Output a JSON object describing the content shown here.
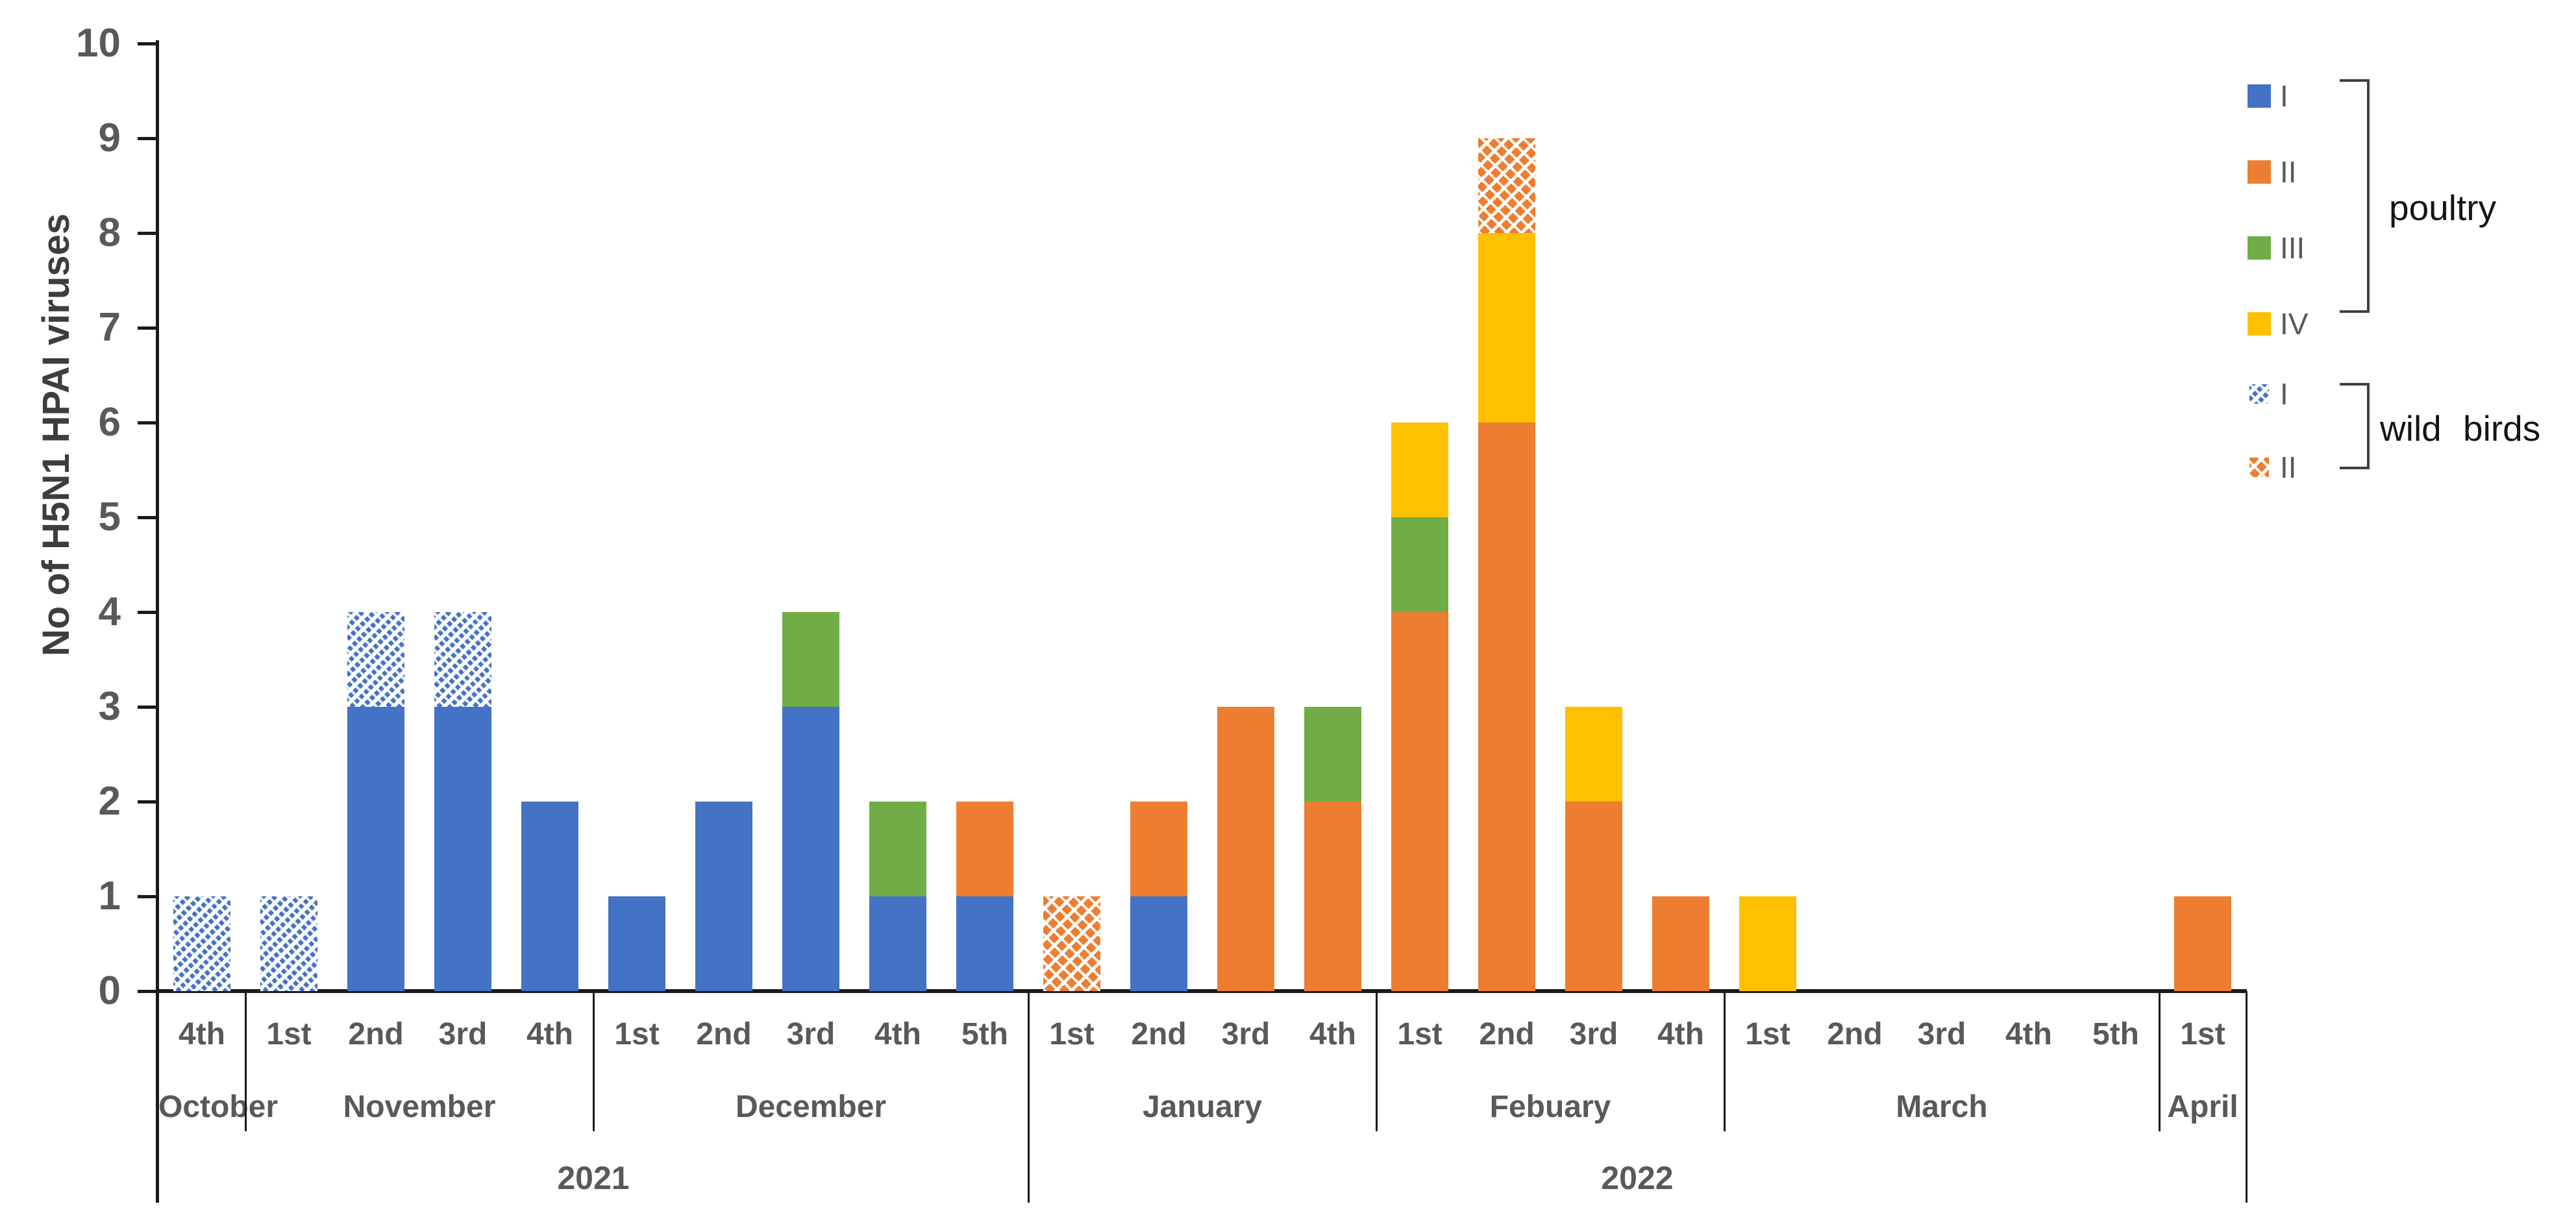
{
  "chart_data": {
    "type": "stacked-bar",
    "title": "",
    "ylabel": "No of H5N1 HPAI viruses",
    "xlabel": "",
    "ylim": [
      0,
      10
    ],
    "yticks": [
      0,
      1,
      2,
      3,
      4,
      5,
      6,
      7,
      8,
      9,
      10
    ],
    "grid": false,
    "legend_position": "top-right",
    "series": [
      {
        "key": "poultry_I",
        "label": "I",
        "group": "poultry",
        "color": "#4472C4",
        "pattern": "solid"
      },
      {
        "key": "poultry_II",
        "label": "II",
        "group": "poultry",
        "color": "#ED7D31",
        "pattern": "solid"
      },
      {
        "key": "poultry_III",
        "label": "III",
        "group": "poultry",
        "color": "#70AD47",
        "pattern": "solid"
      },
      {
        "key": "poultry_IV",
        "label": "IV",
        "group": "poultry",
        "color": "#FFC000",
        "pattern": "solid"
      },
      {
        "key": "wild_I",
        "label": "I",
        "group": "wild birds",
        "color": "#4472C4",
        "pattern": "hatch"
      },
      {
        "key": "wild_II",
        "label": "II",
        "group": "wild birds",
        "color": "#ED7D31",
        "pattern": "hatch"
      }
    ],
    "weeks": [
      {
        "label": "4th",
        "values": {
          "wild_I": 1
        }
      },
      {
        "label": "1st",
        "values": {
          "wild_I": 1
        }
      },
      {
        "label": "2nd",
        "values": {
          "poultry_I": 3,
          "wild_I": 1
        }
      },
      {
        "label": "3rd",
        "values": {
          "poultry_I": 3,
          "wild_I": 1
        }
      },
      {
        "label": "4th",
        "values": {
          "poultry_I": 2
        }
      },
      {
        "label": "1st",
        "values": {
          "poultry_I": 1
        }
      },
      {
        "label": "2nd",
        "values": {
          "poultry_I": 2
        }
      },
      {
        "label": "3rd",
        "values": {
          "poultry_I": 3,
          "poultry_III": 1
        }
      },
      {
        "label": "4th",
        "values": {
          "poultry_I": 1,
          "poultry_III": 1
        }
      },
      {
        "label": "5th",
        "values": {
          "poultry_I": 1,
          "poultry_II": 1
        }
      },
      {
        "label": "1st",
        "values": {
          "wild_II": 1
        }
      },
      {
        "label": "2nd",
        "values": {
          "poultry_I": 1,
          "poultry_II": 1
        }
      },
      {
        "label": "3rd",
        "values": {
          "poultry_II": 3
        }
      },
      {
        "label": "4th",
        "values": {
          "poultry_II": 2,
          "poultry_III": 1
        }
      },
      {
        "label": "1st",
        "values": {
          "poultry_II": 4,
          "poultry_III": 1,
          "poultry_IV": 1
        }
      },
      {
        "label": "2nd",
        "values": {
          "poultry_II": 6,
          "poultry_IV": 2,
          "wild_II": 1
        }
      },
      {
        "label": "3rd",
        "values": {
          "poultry_II": 2,
          "poultry_IV": 1
        }
      },
      {
        "label": "4th",
        "values": {
          "poultry_II": 1
        }
      },
      {
        "label": "1st",
        "values": {
          "poultry_IV": 1
        }
      },
      {
        "label": "2nd",
        "values": {}
      },
      {
        "label": "3rd",
        "values": {}
      },
      {
        "label": "4th",
        "values": {}
      },
      {
        "label": "5th",
        "values": {}
      },
      {
        "label": "1st",
        "values": {
          "poultry_II": 1
        }
      }
    ],
    "months": [
      {
        "label": "October",
        "weeks": 1
      },
      {
        "label": "November",
        "weeks": 4
      },
      {
        "label": "December",
        "weeks": 5
      },
      {
        "label": "January",
        "weeks": 4
      },
      {
        "label": "Febuary",
        "weeks": 4
      },
      {
        "label": "March",
        "weeks": 5
      },
      {
        "label": "April",
        "weeks": 1
      }
    ],
    "years": [
      {
        "label": "2021",
        "weeks": 10
      },
      {
        "label": "2022",
        "weeks": 14
      }
    ]
  },
  "legend": {
    "groups": [
      {
        "label": "poultry",
        "series": [
          "poultry_I",
          "poultry_II",
          "poultry_III",
          "poultry_IV"
        ]
      },
      {
        "label": "wild birds",
        "series": [
          "wild_I",
          "wild_II"
        ]
      }
    ]
  },
  "colors": {
    "axis": "#1a1a1a",
    "tick_label": "#595959",
    "category_label": "#595959",
    "y_title": "#3d3d3d",
    "legend_item_label": "#595959",
    "group_label": "#141414",
    "background": "#ffffff"
  }
}
